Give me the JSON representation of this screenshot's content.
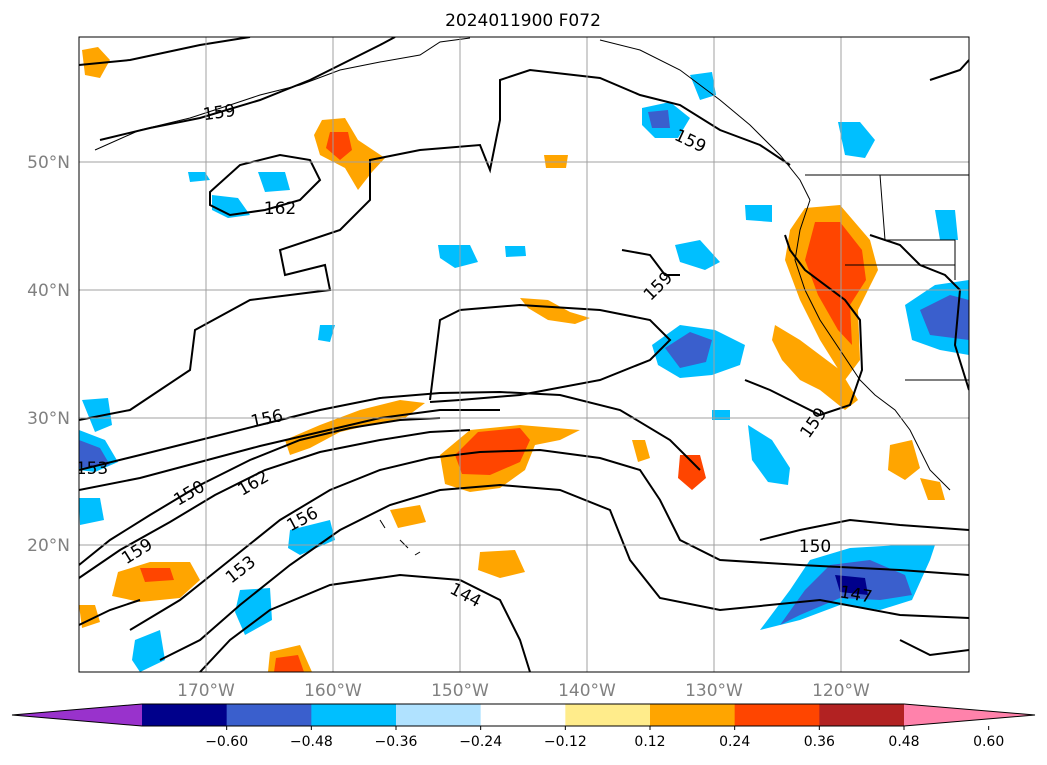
{
  "title": "2024011900 F072",
  "map": {
    "lon_ticks": [
      "170°W",
      "160°W",
      "150°W",
      "140°W",
      "130°W",
      "120°W"
    ],
    "lat_ticks": [
      "50°N",
      "40°N",
      "30°N",
      "20°N"
    ],
    "contour_labels": [
      "159",
      "162",
      "159",
      "159",
      "156",
      "153",
      "150",
      "162",
      "156",
      "159",
      "153",
      "144",
      "150",
      "147",
      "159"
    ]
  },
  "colorbar": {
    "tick_labels": [
      "−0.60",
      "−0.48",
      "−0.36",
      "−0.24",
      "−0.12",
      "0.12",
      "0.24",
      "0.36",
      "0.48",
      "0.60"
    ],
    "colors": [
      "#9932cc",
      "#00008b",
      "#3a5fcd",
      "#00bfff",
      "#b0e2ff",
      "#ffffff",
      "#ffec8b",
      "#ffa500",
      "#ff4500",
      "#b22222",
      "#ff82ab"
    ]
  }
}
